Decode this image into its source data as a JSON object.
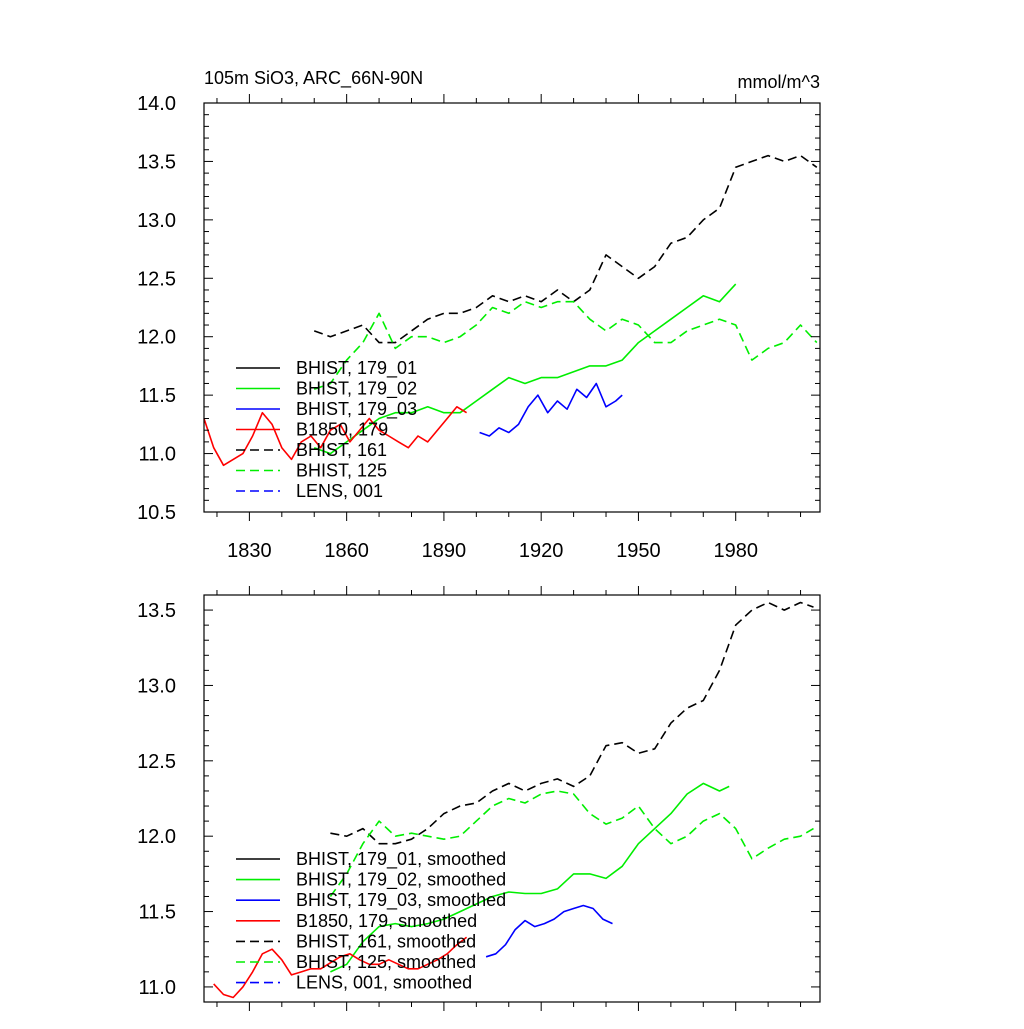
{
  "header": {
    "title": "105m SiO3, ARC_66N-90N",
    "units": "mmol/m^3"
  },
  "chart_data": [
    {
      "type": "line",
      "xlim": [
        1816,
        2006
      ],
      "ylim": [
        10.5,
        14.0
      ],
      "xticks": [
        1830,
        1860,
        1890,
        1920,
        1950,
        1980
      ],
      "xtick_labels": [
        "1830",
        "1860",
        "1890",
        "1920",
        "1950",
        "1980"
      ],
      "yticks": [
        10.5,
        11.0,
        11.5,
        12.0,
        12.5,
        13.0,
        13.5,
        14.0
      ],
      "ytick_labels": [
        "10.5",
        "11.0",
        "11.5",
        "12.0",
        "12.5",
        "13.0",
        "13.5",
        "14.0"
      ],
      "grid": false,
      "legend_position": "bottom-left",
      "legend": [
        "BHIST, 179_01",
        "BHIST, 179_02",
        "BHIST, 179_03",
        "B1850, 179",
        "BHIST, 161",
        "BHIST, 125",
        "LENS, 001"
      ],
      "series": [
        {
          "name": "BHIST, 179_01",
          "color": "#000000",
          "dash": "solid",
          "x": [],
          "y": []
        },
        {
          "name": "BHIST, 179_02",
          "color": "#00ee00",
          "dash": "solid",
          "x": [
            1850,
            1855,
            1860,
            1865,
            1870,
            1875,
            1880,
            1885,
            1890,
            1895,
            1900,
            1905,
            1910,
            1915,
            1920,
            1925,
            1930,
            1935,
            1940,
            1945,
            1950,
            1955,
            1960,
            1965,
            1970,
            1975,
            1980
          ],
          "y": [
            11.05,
            11.0,
            11.1,
            11.2,
            11.3,
            11.35,
            11.35,
            11.4,
            11.35,
            11.35,
            11.45,
            11.55,
            11.65,
            11.6,
            11.65,
            11.65,
            11.7,
            11.75,
            11.75,
            11.8,
            11.95,
            12.05,
            12.15,
            12.25,
            12.35,
            12.3,
            12.45
          ]
        },
        {
          "name": "BHIST, 179_03",
          "color": "#0000ff",
          "dash": "solid",
          "x": [
            1901,
            1904,
            1907,
            1910,
            1913,
            1916,
            1919,
            1922,
            1925,
            1928,
            1931,
            1934,
            1937,
            1940,
            1943,
            1945
          ],
          "y": [
            11.18,
            11.15,
            11.22,
            11.18,
            11.25,
            11.4,
            11.5,
            11.35,
            11.45,
            11.38,
            11.55,
            11.48,
            11.6,
            11.4,
            11.45,
            11.5
          ]
        },
        {
          "name": "B1850, 179",
          "color": "#ff0000",
          "dash": "solid",
          "x": [
            1816,
            1819,
            1822,
            1825,
            1828,
            1831,
            1834,
            1837,
            1840,
            1843,
            1846,
            1849,
            1852,
            1855,
            1858,
            1861,
            1864,
            1867,
            1870,
            1873,
            1876,
            1879,
            1882,
            1885,
            1888,
            1891,
            1894,
            1897
          ],
          "y": [
            11.3,
            11.05,
            10.9,
            10.95,
            11.0,
            11.15,
            11.35,
            11.25,
            11.05,
            10.95,
            11.1,
            11.15,
            11.05,
            11.2,
            11.25,
            11.1,
            11.2,
            11.3,
            11.2,
            11.15,
            11.1,
            11.05,
            11.15,
            11.1,
            11.2,
            11.3,
            11.4,
            11.35
          ]
        },
        {
          "name": "BHIST, 161",
          "color": "#000000",
          "dash": "dashed",
          "x": [
            1850,
            1855,
            1860,
            1865,
            1870,
            1875,
            1880,
            1885,
            1890,
            1895,
            1900,
            1905,
            1910,
            1915,
            1920,
            1925,
            1930,
            1935,
            1940,
            1945,
            1950,
            1955,
            1960,
            1965,
            1970,
            1975,
            1980,
            1985,
            1990,
            1995,
            2000,
            2005
          ],
          "y": [
            12.05,
            12.0,
            12.05,
            12.1,
            11.95,
            11.95,
            12.05,
            12.15,
            12.2,
            12.2,
            12.25,
            12.35,
            12.3,
            12.35,
            12.3,
            12.4,
            12.3,
            12.4,
            12.7,
            12.6,
            12.5,
            12.6,
            12.8,
            12.85,
            13.0,
            13.1,
            13.45,
            13.5,
            13.55,
            13.5,
            13.55,
            13.45
          ]
        },
        {
          "name": "BHIST, 125",
          "color": "#00ee00",
          "dash": "dashed",
          "x": [
            1850,
            1855,
            1860,
            1865,
            1870,
            1875,
            1880,
            1885,
            1890,
            1895,
            1900,
            1905,
            1910,
            1915,
            1920,
            1925,
            1930,
            1935,
            1940,
            1945,
            1950,
            1955,
            1960,
            1965,
            1970,
            1975,
            1980,
            1985,
            1990,
            1995,
            2000,
            2005
          ],
          "y": [
            11.55,
            11.6,
            11.8,
            11.95,
            12.2,
            11.9,
            12.0,
            12.0,
            11.95,
            12.0,
            12.1,
            12.25,
            12.2,
            12.3,
            12.25,
            12.3,
            12.3,
            12.15,
            12.05,
            12.15,
            12.1,
            11.95,
            11.95,
            12.05,
            12.1,
            12.15,
            12.1,
            11.8,
            11.9,
            11.95,
            12.1,
            11.95
          ]
        },
        {
          "name": "LENS, 001",
          "color": "#0000ff",
          "dash": "dashed",
          "x": [],
          "y": []
        }
      ]
    },
    {
      "type": "line",
      "xlim": [
        1816,
        2006
      ],
      "ylim": [
        10.9,
        13.6
      ],
      "xticks": [
        1830,
        1860,
        1890,
        1920,
        1950,
        1980
      ],
      "yticks": [
        11.0,
        11.5,
        12.0,
        12.5,
        13.0,
        13.5
      ],
      "ytick_labels": [
        "11.0",
        "11.5",
        "12.0",
        "12.5",
        "13.0",
        "13.5"
      ],
      "grid": false,
      "legend_position": "bottom-left",
      "legend": [
        "BHIST, 179_01, smoothed",
        "BHIST, 179_02, smoothed",
        "BHIST, 179_03, smoothed",
        "B1850, 179, smoothed",
        "BHIST, 161, smoothed",
        "BHIST, 125, smoothed",
        "LENS, 001, smoothed"
      ],
      "series": [
        {
          "name": "BHIST, 179_01, smoothed",
          "color": "#000000",
          "dash": "solid",
          "x": [],
          "y": []
        },
        {
          "name": "BHIST, 179_02, smoothed",
          "color": "#00ee00",
          "dash": "solid",
          "x": [
            1855,
            1860,
            1865,
            1870,
            1875,
            1880,
            1885,
            1890,
            1895,
            1900,
            1905,
            1910,
            1915,
            1920,
            1925,
            1930,
            1935,
            1940,
            1945,
            1950,
            1955,
            1960,
            1965,
            1970,
            1975,
            1978
          ],
          "y": [
            11.1,
            11.15,
            11.3,
            11.4,
            11.42,
            11.4,
            11.42,
            11.45,
            11.5,
            11.55,
            11.6,
            11.63,
            11.62,
            11.62,
            11.65,
            11.75,
            11.75,
            11.72,
            11.8,
            11.95,
            12.05,
            12.15,
            12.28,
            12.35,
            12.3,
            12.33
          ]
        },
        {
          "name": "BHIST, 179_03, smoothed",
          "color": "#0000ff",
          "dash": "solid",
          "x": [
            1903,
            1906,
            1909,
            1912,
            1915,
            1918,
            1921,
            1924,
            1927,
            1930,
            1933,
            1936,
            1939,
            1942
          ],
          "y": [
            11.2,
            11.22,
            11.28,
            11.38,
            11.44,
            11.4,
            11.42,
            11.45,
            11.5,
            11.52,
            11.54,
            11.52,
            11.45,
            11.42
          ]
        },
        {
          "name": "B1850, 179, smoothed",
          "color": "#ff0000",
          "dash": "solid",
          "x": [
            1819,
            1822,
            1825,
            1828,
            1831,
            1834,
            1837,
            1840,
            1843,
            1846,
            1849,
            1852,
            1855,
            1858,
            1861,
            1864,
            1867,
            1870,
            1873,
            1876,
            1879,
            1882,
            1885,
            1888,
            1891,
            1894,
            1897
          ],
          "y": [
            11.02,
            10.95,
            10.93,
            11.0,
            11.1,
            11.22,
            11.25,
            11.18,
            11.08,
            11.1,
            11.12,
            11.12,
            11.16,
            11.2,
            11.22,
            11.18,
            11.15,
            11.15,
            11.18,
            11.15,
            11.12,
            11.12,
            11.15,
            11.18,
            11.22,
            11.28,
            11.33
          ]
        },
        {
          "name": "BHIST, 161, smoothed",
          "color": "#000000",
          "dash": "dashed",
          "x": [
            1855,
            1860,
            1865,
            1870,
            1875,
            1880,
            1885,
            1890,
            1895,
            1900,
            1905,
            1910,
            1915,
            1920,
            1925,
            1930,
            1935,
            1940,
            1945,
            1950,
            1955,
            1960,
            1965,
            1970,
            1975,
            1980,
            1985,
            1990,
            1995,
            2000,
            2004
          ],
          "y": [
            12.02,
            12.0,
            12.05,
            11.95,
            11.95,
            11.98,
            12.05,
            12.15,
            12.2,
            12.22,
            12.3,
            12.35,
            12.3,
            12.35,
            12.38,
            12.33,
            12.4,
            12.6,
            12.62,
            12.55,
            12.58,
            12.75,
            12.85,
            12.9,
            13.1,
            13.4,
            13.5,
            13.55,
            13.5,
            13.55,
            13.52
          ]
        },
        {
          "name": "BHIST, 125, smoothed",
          "color": "#00ee00",
          "dash": "dashed",
          "x": [
            1855,
            1860,
            1865,
            1870,
            1875,
            1880,
            1885,
            1890,
            1895,
            1900,
            1905,
            1910,
            1915,
            1920,
            1925,
            1930,
            1935,
            1940,
            1945,
            1950,
            1955,
            1960,
            1965,
            1970,
            1975,
            1980,
            1985,
            1990,
            1995,
            2000,
            2004
          ],
          "y": [
            11.6,
            11.75,
            11.95,
            12.1,
            12.0,
            12.02,
            12.0,
            11.98,
            12.0,
            12.1,
            12.2,
            12.25,
            12.22,
            12.28,
            12.3,
            12.28,
            12.15,
            12.08,
            12.12,
            12.2,
            12.05,
            11.95,
            12.0,
            12.1,
            12.15,
            12.05,
            11.85,
            11.92,
            11.98,
            12.0,
            12.05
          ]
        },
        {
          "name": "LENS, 001, smoothed",
          "color": "#0000ff",
          "dash": "dashed",
          "x": [],
          "y": []
        }
      ]
    }
  ]
}
